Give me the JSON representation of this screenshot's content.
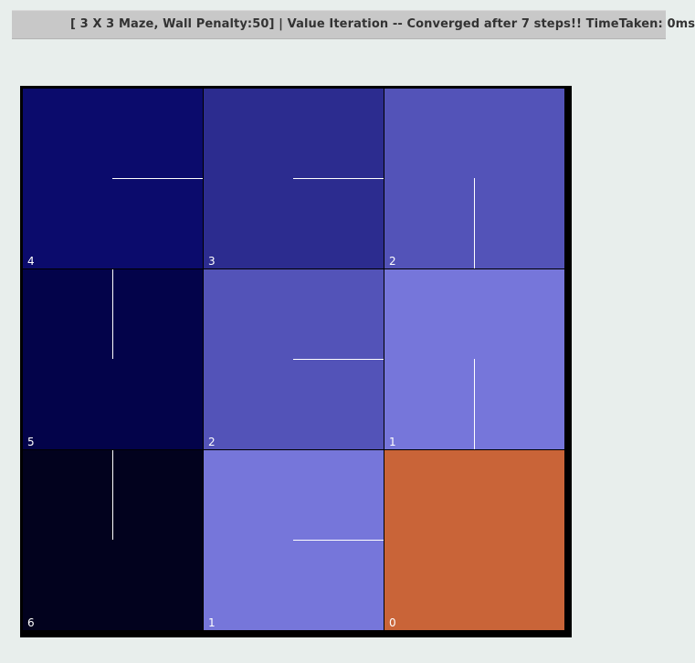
{
  "status_bar": {
    "text": "[ 3 X 3 Maze, Wall Penalty:50] |  Value Iteration -- Converged after 7 steps!! TimeTaken: 0ms"
  },
  "maze": {
    "rows": 3,
    "cols": 3,
    "cells": [
      {
        "row": 0,
        "col": 0,
        "value": "4",
        "color": "#0b0b6c",
        "policy": "right"
      },
      {
        "row": 0,
        "col": 1,
        "value": "3",
        "color": "#2c2c8f",
        "policy": "right"
      },
      {
        "row": 0,
        "col": 2,
        "value": "2",
        "color": "#5353b8",
        "policy": "down"
      },
      {
        "row": 1,
        "col": 0,
        "value": "5",
        "color": "#03034a",
        "policy": "up"
      },
      {
        "row": 1,
        "col": 1,
        "value": "2",
        "color": "#5353b8",
        "policy": "right"
      },
      {
        "row": 1,
        "col": 2,
        "value": "1",
        "color": "#7676da",
        "policy": "down"
      },
      {
        "row": 2,
        "col": 0,
        "value": "6",
        "color": "#02021e",
        "policy": "up"
      },
      {
        "row": 2,
        "col": 1,
        "value": "1",
        "color": "#7676da",
        "policy": "right"
      },
      {
        "row": 2,
        "col": 2,
        "value": "0",
        "color": "#c96438",
        "policy": "goal"
      }
    ]
  }
}
